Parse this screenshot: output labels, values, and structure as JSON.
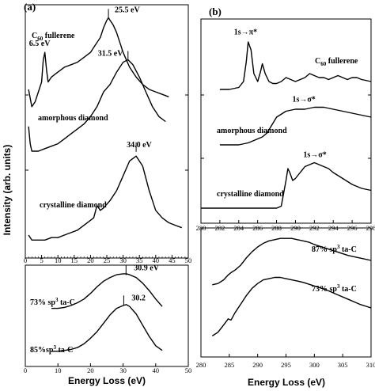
{
  "figure": {
    "panel_a": "(a)",
    "panel_b": "(b)",
    "y_axis_title": "Intensity (arb. units)",
    "x_axis_title": "Energy Loss (eV)"
  },
  "chart_data": [
    {
      "id": "a_top",
      "type": "line",
      "xlim": [
        0,
        50
      ],
      "x_ticks": [
        "0",
        "5",
        "10",
        "15",
        "20",
        "25",
        "30",
        "35",
        "40",
        "45",
        "50"
      ],
      "series": [
        {
          "name": "C60 fullerene",
          "name_base": "C",
          "name_sub": "60",
          "name_rest": " fullerene",
          "x": [
            1,
            2,
            3,
            4,
            5,
            5.5,
            6,
            6.5,
            7,
            8,
            9,
            10,
            12,
            14,
            16,
            18,
            20,
            21,
            22,
            23,
            24,
            25,
            25.5,
            26,
            27,
            28,
            29,
            30,
            32,
            34,
            36,
            38,
            40,
            42,
            44
          ],
          "y": [
            0.67,
            0.6,
            0.62,
            0.66,
            0.7,
            0.79,
            0.82,
            0.75,
            0.7,
            0.72,
            0.73,
            0.74,
            0.76,
            0.77,
            0.78,
            0.8,
            0.82,
            0.84,
            0.86,
            0.88,
            0.92,
            0.95,
            0.96,
            0.95,
            0.93,
            0.9,
            0.86,
            0.82,
            0.76,
            0.72,
            0.69,
            0.67,
            0.66,
            0.65,
            0.64
          ]
        },
        {
          "name": "amorphous diamond",
          "x": [
            1,
            1.5,
            2,
            4,
            6,
            8,
            10,
            12,
            14,
            16,
            18,
            20,
            22,
            24,
            26,
            28,
            30,
            31.5,
            33,
            35,
            37,
            39,
            41,
            43
          ],
          "y": [
            0.52,
            0.45,
            0.42,
            0.42,
            0.43,
            0.44,
            0.45,
            0.47,
            0.49,
            0.51,
            0.53,
            0.56,
            0.6,
            0.66,
            0.69,
            0.74,
            0.78,
            0.79,
            0.77,
            0.72,
            0.66,
            0.6,
            0.56,
            0.54
          ]
        },
        {
          "name": "crystalline diamond",
          "x": [
            1,
            2,
            4,
            6,
            8,
            10,
            12,
            14,
            16,
            18,
            20,
            21,
            22,
            23,
            24,
            26,
            28,
            30,
            32,
            34,
            36,
            38,
            40,
            42,
            44,
            46,
            48
          ],
          "y": [
            0.08,
            0.06,
            0.06,
            0.06,
            0.07,
            0.07,
            0.08,
            0.09,
            0.1,
            0.12,
            0.14,
            0.15,
            0.2,
            0.18,
            0.19,
            0.22,
            0.26,
            0.32,
            0.38,
            0.4,
            0.36,
            0.26,
            0.18,
            0.15,
            0.13,
            0.12,
            0.11
          ]
        }
      ],
      "annotations": [
        {
          "text": "25.5 eV",
          "x": 25.5
        },
        {
          "text": "6.5 eV",
          "x": 6.5
        },
        {
          "text": "31.5 eV",
          "x": 31.5
        },
        {
          "text": "34.0 eV",
          "x": 34.0
        }
      ]
    },
    {
      "id": "a_bottom",
      "type": "line",
      "xlim": [
        0,
        50
      ],
      "x_ticks": [
        "0",
        "10",
        "20",
        "30",
        "40",
        "50"
      ],
      "series": [
        {
          "name": "73% sp3 ta-C",
          "name_base": "73% sp",
          "name_sup": "3",
          "name_rest": " ta-C",
          "x": [
            8,
            10,
            12,
            14,
            16,
            18,
            20,
            22,
            24,
            26,
            28,
            30,
            31,
            32,
            34,
            36,
            38,
            40,
            42
          ],
          "y": [
            0.58,
            0.58,
            0.59,
            0.61,
            0.64,
            0.68,
            0.74,
            0.81,
            0.87,
            0.91,
            0.94,
            0.95,
            0.95,
            0.94,
            0.91,
            0.85,
            0.77,
            0.68,
            0.6
          ]
        },
        {
          "name": "85% sp3 ta-C",
          "name_base": "85%sp",
          "name_sup": "3",
          "name_rest": " ta-C",
          "x": [
            8,
            10,
            12,
            14,
            16,
            18,
            20,
            22,
            24,
            26,
            28,
            30,
            31,
            32,
            34,
            36,
            38,
            40,
            42
          ],
          "y": [
            0.12,
            0.12,
            0.13,
            0.14,
            0.16,
            0.2,
            0.26,
            0.33,
            0.42,
            0.51,
            0.58,
            0.61,
            0.62,
            0.6,
            0.52,
            0.4,
            0.28,
            0.18,
            0.13
          ]
        }
      ],
      "annotations": [
        {
          "text": "30.9 eV",
          "x": 30.9
        },
        {
          "text": "30.2",
          "x": 30.2
        }
      ]
    },
    {
      "id": "b_top",
      "type": "line",
      "xlim": [
        280,
        298
      ],
      "x_ticks": [
        "280",
        "282",
        "284",
        "286",
        "288",
        "290",
        "292",
        "294",
        "296",
        "298"
      ],
      "series": [
        {
          "name": "C60 fullerene",
          "name_base": "C",
          "name_sub": "60",
          "name_rest": " fullerene",
          "x": [
            282,
            283,
            284,
            284.5,
            284.8,
            285,
            285.3,
            285.6,
            286,
            286.3,
            286.5,
            286.8,
            287.2,
            287.6,
            288,
            288.5,
            289,
            289.5,
            290,
            290.5,
            291,
            291.5,
            292,
            292.5,
            293,
            293.5,
            294,
            294.5,
            295,
            295.5,
            296,
            296.5,
            297,
            298
          ],
          "y": [
            0.66,
            0.66,
            0.67,
            0.7,
            0.8,
            0.9,
            0.86,
            0.74,
            0.7,
            0.75,
            0.79,
            0.74,
            0.7,
            0.69,
            0.69,
            0.7,
            0.72,
            0.71,
            0.7,
            0.71,
            0.72,
            0.74,
            0.73,
            0.72,
            0.72,
            0.71,
            0.72,
            0.73,
            0.72,
            0.71,
            0.72,
            0.72,
            0.71,
            0.7
          ]
        },
        {
          "name": "amorphous diamond",
          "x": [
            282,
            283,
            284,
            285,
            285.5,
            286,
            286.5,
            287,
            287.5,
            288,
            289,
            290,
            291,
            292,
            293,
            294,
            295,
            296,
            297,
            298
          ],
          "y": [
            0.38,
            0.38,
            0.38,
            0.39,
            0.4,
            0.41,
            0.42,
            0.44,
            0.48,
            0.52,
            0.55,
            0.56,
            0.56,
            0.57,
            0.57,
            0.56,
            0.55,
            0.54,
            0.53,
            0.52
          ]
        },
        {
          "name": "crystalline diamond",
          "x": [
            280,
            282,
            284,
            286,
            288,
            288.5,
            289,
            289.2,
            289.4,
            289.7,
            290,
            290.5,
            291,
            291.5,
            292,
            292.5,
            293,
            293.5,
            294,
            295,
            296,
            297,
            298
          ],
          "y": [
            0.06,
            0.06,
            0.06,
            0.06,
            0.06,
            0.07,
            0.2,
            0.26,
            0.24,
            0.2,
            0.21,
            0.24,
            0.27,
            0.28,
            0.29,
            0.28,
            0.27,
            0.26,
            0.24,
            0.21,
            0.18,
            0.16,
            0.15
          ]
        }
      ],
      "annotations": [
        {
          "text": "1s→π*",
          "x": 285
        },
        {
          "text": "1s→σ*",
          "x": 290
        },
        {
          "text": "1s→σ*",
          "x": 291
        }
      ]
    },
    {
      "id": "b_bottom",
      "type": "line",
      "xlim": [
        280,
        310
      ],
      "x_ticks": [
        "280",
        "285",
        "290",
        "295",
        "300",
        "305",
        "310"
      ],
      "series": [
        {
          "name": "87% sp3 ta-C",
          "name_base": "87% sp",
          "name_sup": "3",
          "name_rest": " ta-C",
          "x": [
            282,
            283,
            284,
            284.8,
            285.3,
            286,
            287,
            288,
            289,
            290,
            291,
            292,
            293,
            294,
            295,
            296,
            297,
            298,
            299,
            300,
            302,
            304,
            306,
            308,
            310
          ],
          "y": [
            0.56,
            0.57,
            0.6,
            0.64,
            0.66,
            0.68,
            0.72,
            0.78,
            0.83,
            0.87,
            0.9,
            0.92,
            0.93,
            0.94,
            0.94,
            0.94,
            0.93,
            0.92,
            0.91,
            0.89,
            0.86,
            0.83,
            0.8,
            0.78,
            0.76
          ]
        },
        {
          "name": "73% sp3 ta-C",
          "name_base": "73% sp",
          "name_sup": "3",
          "name_rest": " ta-C",
          "x": [
            282,
            283,
            284,
            284.8,
            285.3,
            286,
            287,
            288,
            289,
            290,
            291,
            292,
            293,
            294,
            295,
            296,
            297,
            298,
            300,
            302,
            304,
            306,
            308,
            310
          ],
          "y": [
            0.14,
            0.17,
            0.23,
            0.28,
            0.27,
            0.33,
            0.4,
            0.47,
            0.53,
            0.57,
            0.6,
            0.61,
            0.62,
            0.62,
            0.61,
            0.6,
            0.59,
            0.58,
            0.55,
            0.52,
            0.48,
            0.44,
            0.4,
            0.37
          ]
        }
      ]
    }
  ]
}
